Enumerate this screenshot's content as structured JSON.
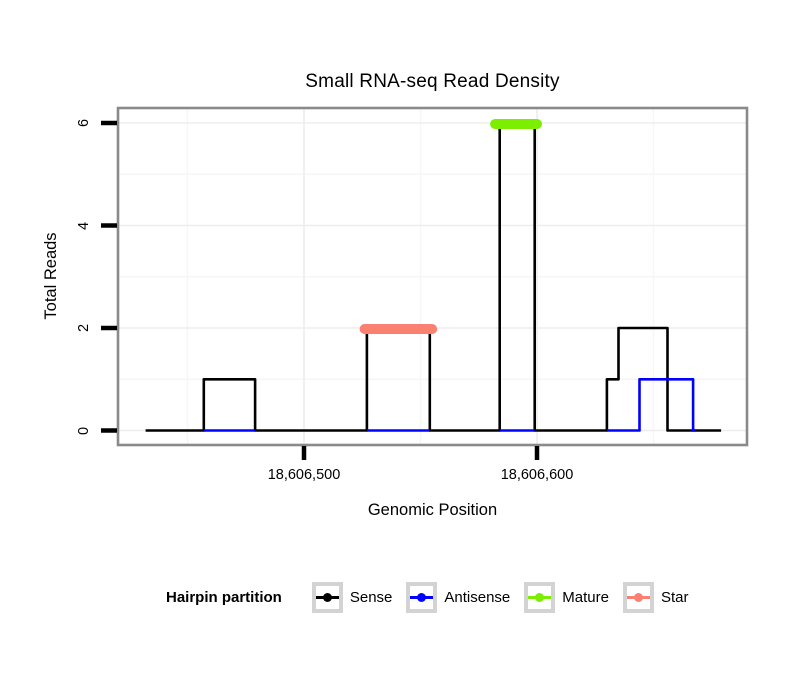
{
  "figure": {
    "title": "Small RNA-seq Read Density"
  },
  "chart_data": {
    "type": "line",
    "subtype": "step-coverage",
    "title": "Small RNA-seq Read Density",
    "xlabel": "Genomic Position",
    "ylabel": "Total Reads",
    "grid": true,
    "legend_position": "bottom",
    "x_axis": {
      "ticks": [
        18606500,
        18606600
      ],
      "tick_labels": [
        "18,606,500",
        "18,606,600"
      ],
      "minor_ticks": [
        18606450,
        18606550,
        18606650
      ],
      "range": [
        18606420,
        18606692
      ]
    },
    "y_axis": {
      "ticks": [
        0,
        2,
        4,
        6
      ],
      "tick_labels": [
        "0",
        "2",
        "4",
        "6"
      ],
      "minor_ticks": [
        1,
        3,
        5
      ],
      "range": [
        0,
        6.3
      ]
    },
    "series": [
      {
        "name": "Sense",
        "color": "#000000",
        "render": "step",
        "segments": [
          [
            18606432,
            18606457,
            0
          ],
          [
            18606457,
            18606479,
            1
          ],
          [
            18606479,
            18606527,
            0
          ],
          [
            18606527,
            18606554,
            2
          ],
          [
            18606554,
            18606584,
            0
          ],
          [
            18606584,
            18606599,
            6
          ],
          [
            18606599,
            18606630,
            0
          ],
          [
            18606630,
            18606635,
            1
          ],
          [
            18606635,
            18606656,
            2
          ],
          [
            18606656,
            18606679,
            0
          ]
        ]
      },
      {
        "name": "Antisense",
        "color": "#0000FF",
        "render": "step",
        "segments": [
          [
            18606457,
            18606479,
            0
          ],
          [
            18606527,
            18606554,
            0
          ],
          [
            18606584,
            18606599,
            0
          ],
          [
            18606630,
            18606644,
            0
          ],
          [
            18606644,
            18606667,
            1
          ],
          [
            18606667,
            18606668,
            0
          ]
        ]
      },
      {
        "name": "Mature",
        "color": "#7CEE00",
        "render": "segment-marker",
        "segments": [
          [
            18606582,
            18606600,
            6
          ]
        ]
      },
      {
        "name": "Star",
        "color": "#FA8072",
        "render": "segment-marker",
        "segments": [
          [
            18606526,
            18606555,
            2
          ]
        ]
      }
    ]
  },
  "legend": {
    "title": "Hairpin partition",
    "items": [
      {
        "label": "Sense",
        "color": "#000000"
      },
      {
        "label": "Antisense",
        "color": "#0000FF"
      },
      {
        "label": "Mature",
        "color": "#7CEE00"
      },
      {
        "label": "Star",
        "color": "#FA8072"
      }
    ]
  },
  "colors": {
    "panel_border": "#8A8A8A",
    "grid_major": "#EDEDED",
    "grid_minor": "#F6F6F6",
    "tick": "#000000",
    "text": "#000000",
    "legend_key_border": "#D3D3D3"
  }
}
